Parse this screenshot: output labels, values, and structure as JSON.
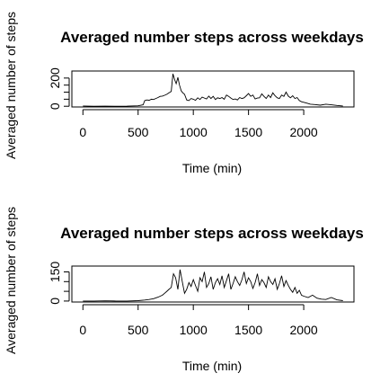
{
  "chart_data": [
    {
      "type": "line",
      "title": "Averaged number steps across weekdays",
      "xlabel": "Time (min)",
      "ylabel": "Averaged number of steps",
      "xlim": [
        -100,
        2455
      ],
      "ylim": [
        -5,
        250
      ],
      "xticks": [
        0,
        500,
        1000,
        1500,
        2000
      ],
      "yticks": [
        0,
        50,
        100,
        150,
        200
      ],
      "ytick_labels": [
        "0",
        "",
        "",
        "",
        "200"
      ],
      "series": [
        {
          "x": [
            0,
            100,
            200,
            300,
            400,
            500,
            545,
            560,
            580,
            600,
            620,
            640,
            660,
            680,
            700,
            720,
            740,
            760,
            780,
            800,
            815,
            830,
            845,
            860,
            875,
            890,
            905,
            920,
            940,
            960,
            980,
            1000,
            1020,
            1040,
            1060,
            1080,
            1100,
            1120,
            1140,
            1160,
            1180,
            1200,
            1220,
            1240,
            1260,
            1280,
            1300,
            1320,
            1340,
            1360,
            1380,
            1400,
            1420,
            1440,
            1460,
            1480,
            1500,
            1520,
            1540,
            1560,
            1580,
            1600,
            1620,
            1640,
            1660,
            1680,
            1700,
            1720,
            1740,
            1760,
            1780,
            1800,
            1820,
            1840,
            1860,
            1880,
            1900,
            1920,
            1940,
            1960,
            1980,
            2000,
            2030,
            2060,
            2100,
            2150,
            2200,
            2250,
            2300,
            2355
          ],
          "y": [
            2,
            0,
            1,
            0,
            1,
            3,
            10,
            40,
            45,
            42,
            50,
            48,
            55,
            62,
            70,
            72,
            78,
            85,
            95,
            105,
            230,
            190,
            160,
            205,
            150,
            110,
            95,
            85,
            45,
            40,
            55,
            50,
            42,
            60,
            48,
            65,
            58,
            52,
            72,
            55,
            70,
            48,
            60,
            55,
            62,
            50,
            80,
            70,
            58,
            48,
            52,
            45,
            62,
            55,
            60,
            75,
            90,
            70,
            80,
            52,
            58,
            60,
            88,
            70,
            55,
            80,
            62,
            95,
            75,
            60,
            55,
            80,
            70,
            100,
            72,
            60,
            75,
            55,
            62,
            40,
            32,
            28,
            22,
            15,
            12,
            8,
            15,
            10,
            6,
            2
          ]
        }
      ]
    },
    {
      "type": "line",
      "title": "Averaged number steps across weekdays",
      "xlabel": "Time (min)",
      "ylabel": "Averaged number of steps",
      "xlim": [
        -100,
        2455
      ],
      "ylim": [
        -5,
        180
      ],
      "xticks": [
        0,
        500,
        1000,
        1500,
        2000
      ],
      "yticks": [
        0,
        50,
        100,
        150
      ],
      "ytick_labels": [
        "0",
        "",
        "",
        "150"
      ],
      "series": [
        {
          "x": [
            0,
            100,
            200,
            300,
            400,
            500,
            560,
            600,
            640,
            680,
            700,
            720,
            740,
            760,
            780,
            800,
            820,
            840,
            860,
            880,
            900,
            920,
            940,
            960,
            980,
            1000,
            1020,
            1040,
            1060,
            1080,
            1100,
            1120,
            1140,
            1160,
            1180,
            1200,
            1220,
            1240,
            1260,
            1280,
            1300,
            1320,
            1340,
            1360,
            1380,
            1400,
            1420,
            1440,
            1460,
            1480,
            1500,
            1520,
            1540,
            1560,
            1580,
            1600,
            1620,
            1640,
            1660,
            1680,
            1700,
            1720,
            1740,
            1760,
            1780,
            1800,
            1820,
            1840,
            1860,
            1880,
            1900,
            1920,
            1940,
            1960,
            1980,
            2000,
            2040,
            2080,
            2120,
            2160,
            2200,
            2250,
            2300,
            2355
          ],
          "y": [
            0,
            0,
            1,
            0,
            0,
            2,
            5,
            8,
            12,
            20,
            25,
            30,
            40,
            50,
            60,
            70,
            140,
            120,
            60,
            162,
            100,
            40,
            60,
            95,
            75,
            110,
            80,
            50,
            120,
            100,
            150,
            70,
            90,
            125,
            60,
            95,
            115,
            85,
            130,
            70,
            105,
            140,
            60,
            90,
            125,
            100,
            80,
            110,
            150,
            90,
            120,
            100,
            65,
            95,
            140,
            80,
            110,
            95,
            70,
            125,
            100,
            85,
            115,
            60,
            90,
            130,
            75,
            105,
            80,
            60,
            45,
            70,
            40,
            55,
            30,
            25,
            18,
            30,
            15,
            10,
            8,
            18,
            6,
            2
          ]
        }
      ]
    }
  ]
}
